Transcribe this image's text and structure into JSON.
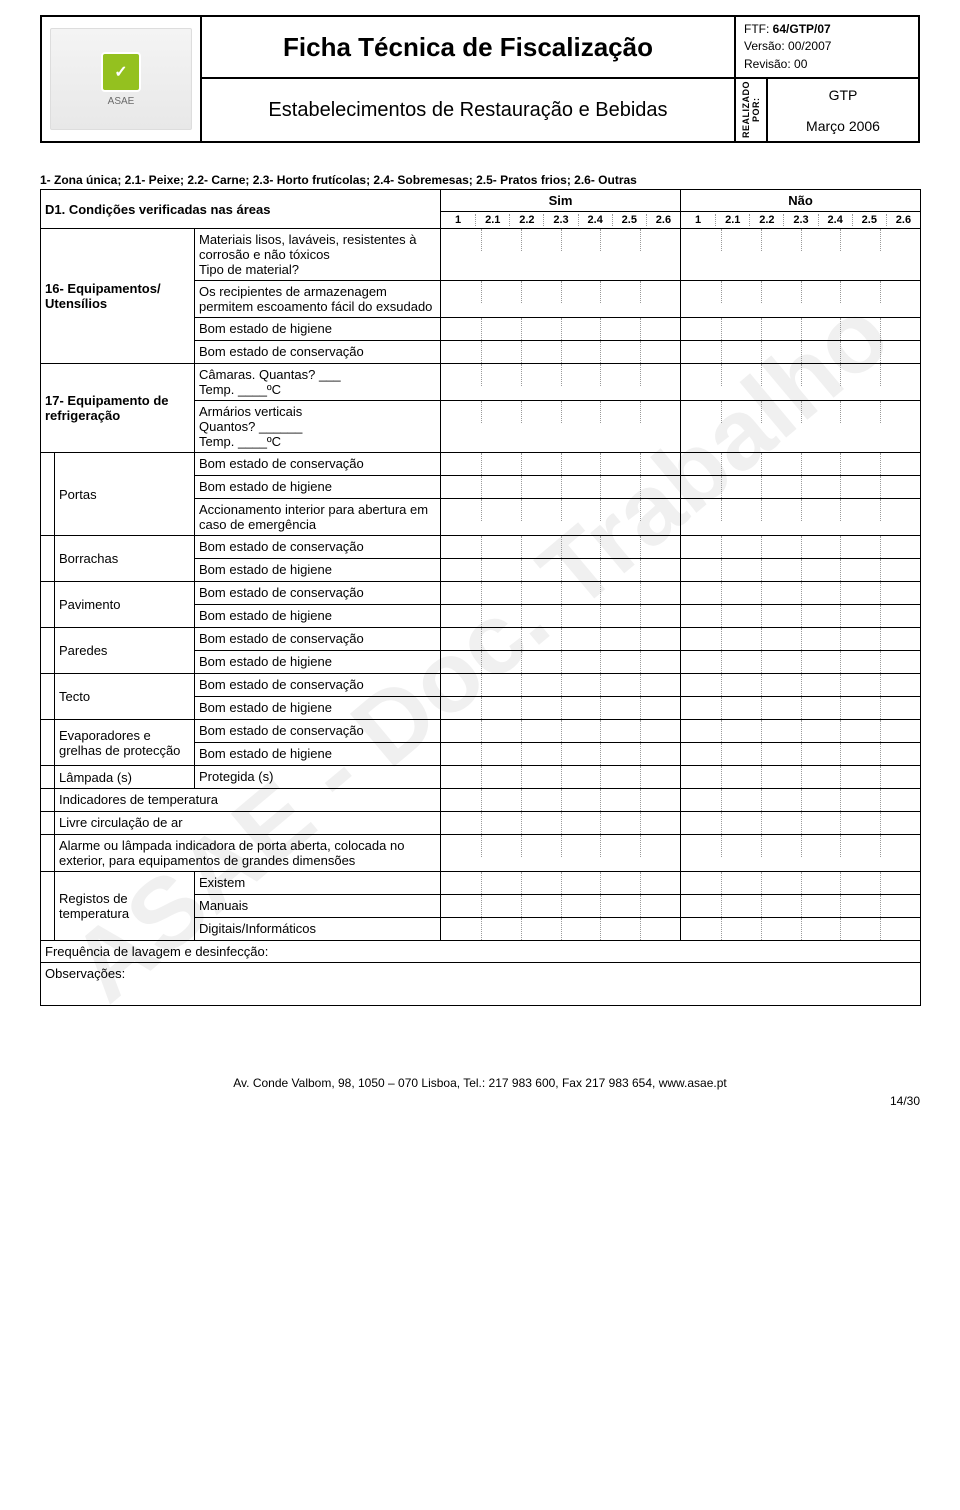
{
  "header": {
    "title": "Ficha Técnica de Fiscalização",
    "subtitle": "Estabelecimentos de Restauração e Bebidas",
    "ftf_label": "FTF:",
    "ftf_value": "64/GTP/07",
    "versao_label": "Versão:",
    "versao_value": "00/2007",
    "revisao_label": "Revisão:",
    "revisao_value": "00",
    "realizado": "REALIZADO POR:",
    "gtp": "GTP",
    "date": "Março 2006",
    "logo_text": "ASAE"
  },
  "legend": "1- Zona única; 2.1- Peixe; 2.2- Carne; 2.3- Horto frutícolas; 2.4- Sobremesas; 2.5- Pratos frios; 2.6- Outras",
  "d1": "D1. Condições verificadas nas áreas",
  "sim": "Sim",
  "nao": "Não",
  "cols": [
    "1",
    "2.1",
    "2.2",
    "2.3",
    "2.4",
    "2.5",
    "2.6"
  ],
  "sec16": {
    "label": "16- Equipamentos/ Utensílios",
    "items": [
      "Materiais lisos, laváveis, resistentes à corrosão e não tóxicos\nTipo de material?",
      "Os recipientes de armazenagem permitem escoamento fácil do exsudado",
      "Bom estado de higiene",
      "Bom estado de conservação"
    ]
  },
  "sec17": {
    "label": "17- Equipamento de refrigeração",
    "items": [
      "Câmaras. Quantas? ___\nTemp. ____ºC",
      "Armários verticais\nQuantos? ______\nTemp. ____ºC"
    ]
  },
  "groups": [
    {
      "label": "Portas",
      "items": [
        "Bom estado de conservação",
        "Bom estado de higiene",
        "Accionamento interior para abertura em caso de emergência"
      ]
    },
    {
      "label": "Borrachas",
      "items": [
        "Bom estado de conservação",
        "Bom estado de higiene"
      ]
    },
    {
      "label": "Pavimento",
      "items": [
        "Bom estado de conservação",
        "Bom estado de higiene"
      ]
    },
    {
      "label": "Paredes",
      "items": [
        "Bom estado de conservação",
        "Bom estado de higiene"
      ]
    },
    {
      "label": "Tecto",
      "items": [
        "Bom estado de conservação",
        "Bom estado de higiene"
      ]
    },
    {
      "label": "Evaporadores e grelhas de protecção",
      "items": [
        "Bom estado de conservação",
        "Bom estado de higiene"
      ]
    },
    {
      "label": "Lâmpada (s)",
      "items": [
        "Protegida (s)"
      ]
    }
  ],
  "fullrows": [
    "Indicadores de temperatura",
    "Livre circulação de ar",
    "Alarme ou lâmpada indicadora de porta aberta, colocada no exterior, para equipamentos de grandes dimensões"
  ],
  "registos": {
    "label": "Registos de temperatura",
    "items": [
      "Existem",
      "Manuais",
      "Digitais/Informáticos"
    ]
  },
  "freq": "Frequência de lavagem e desinfecção:",
  "obs": "Observações:",
  "footer": "Av. Conde Valbom, 98, 1050 – 070 Lisboa, Tel.: 217 983 600, Fax 217 983 654, www.asae.pt",
  "pagenum": "14/30",
  "watermark": "ASAE - Doc. Trabalho",
  "colors": {
    "text": "#000000",
    "border": "#000000",
    "dotted": "#9a9a9a",
    "logo_green": "#94c11f",
    "bg": "#ffffff",
    "watermark": "rgba(0,0,0,0.06)"
  },
  "fonts": {
    "title_size_pt": 20,
    "subtitle_size_pt": 15,
    "body_size_pt": 10,
    "legend_size_pt": 9
  }
}
